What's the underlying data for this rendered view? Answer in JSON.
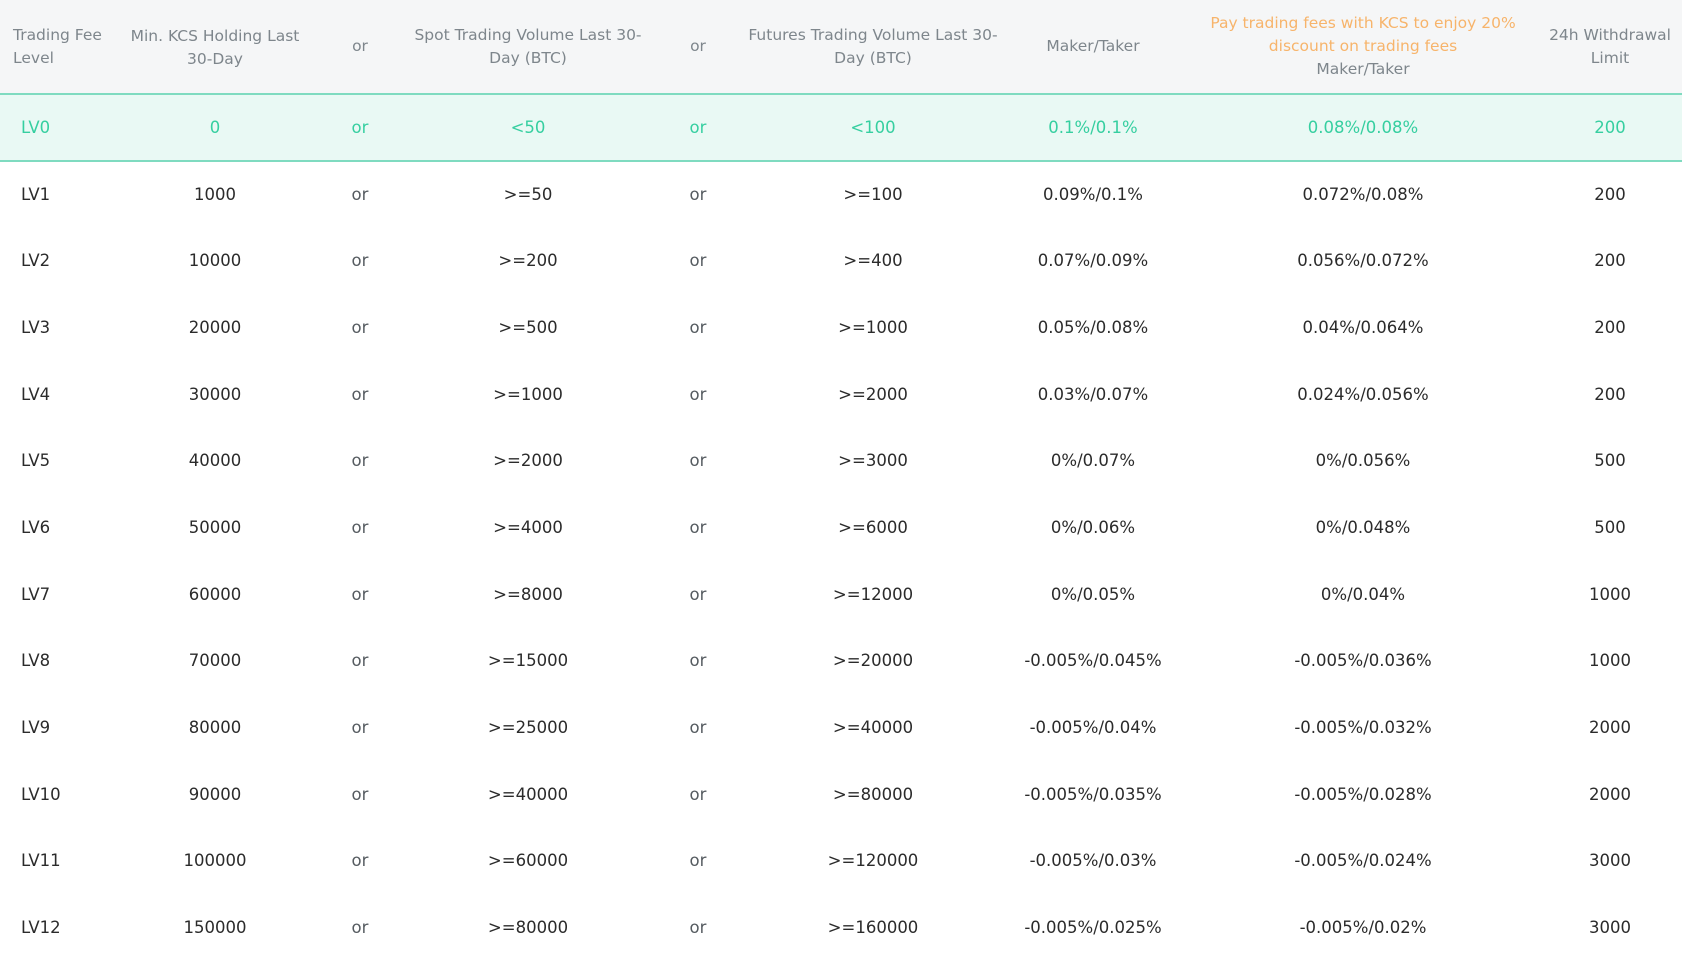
{
  "header": {
    "level": "Trading Fee Level",
    "kcs": "Min. KCS Holding Last 30-Day",
    "or1": "or",
    "spot": "Spot Trading Volume Last 30-Day (BTC)",
    "or2": "or",
    "futures": "Futures Trading Volume Last 30-Day (BTC)",
    "maker_taker": "Maker/Taker",
    "promo": "Pay trading fees with KCS to enjoy 20% discount on trading fees",
    "discount_maker_taker": "Maker/Taker",
    "withdrawal": "24h Withdrawal Limit"
  },
  "rows": [
    {
      "level": "LV0",
      "kcs": "0",
      "or1": "or",
      "spot": "<50",
      "or2": "or",
      "futures": "<100",
      "maker_taker": "0.1%/0.1%",
      "discount": "0.08%/0.08%",
      "withdrawal": "200"
    },
    {
      "level": "LV1",
      "kcs": "1000",
      "or1": "or",
      "spot": ">=50",
      "or2": "or",
      "futures": ">=100",
      "maker_taker": "0.09%/0.1%",
      "discount": "0.072%/0.08%",
      "withdrawal": "200"
    },
    {
      "level": "LV2",
      "kcs": "10000",
      "or1": "or",
      "spot": ">=200",
      "or2": "or",
      "futures": ">=400",
      "maker_taker": "0.07%/0.09%",
      "discount": "0.056%/0.072%",
      "withdrawal": "200"
    },
    {
      "level": "LV3",
      "kcs": "20000",
      "or1": "or",
      "spot": ">=500",
      "or2": "or",
      "futures": ">=1000",
      "maker_taker": "0.05%/0.08%",
      "discount": "0.04%/0.064%",
      "withdrawal": "200"
    },
    {
      "level": "LV4",
      "kcs": "30000",
      "or1": "or",
      "spot": ">=1000",
      "or2": "or",
      "futures": ">=2000",
      "maker_taker": "0.03%/0.07%",
      "discount": "0.024%/0.056%",
      "withdrawal": "200"
    },
    {
      "level": "LV5",
      "kcs": "40000",
      "or1": "or",
      "spot": ">=2000",
      "or2": "or",
      "futures": ">=3000",
      "maker_taker": "0%/0.07%",
      "discount": "0%/0.056%",
      "withdrawal": "500"
    },
    {
      "level": "LV6",
      "kcs": "50000",
      "or1": "or",
      "spot": ">=4000",
      "or2": "or",
      "futures": ">=6000",
      "maker_taker": "0%/0.06%",
      "discount": "0%/0.048%",
      "withdrawal": "500"
    },
    {
      "level": "LV7",
      "kcs": "60000",
      "or1": "or",
      "spot": ">=8000",
      "or2": "or",
      "futures": ">=12000",
      "maker_taker": "0%/0.05%",
      "discount": "0%/0.04%",
      "withdrawal": "1000"
    },
    {
      "level": "LV8",
      "kcs": "70000",
      "or1": "or",
      "spot": ">=15000",
      "or2": "or",
      "futures": ">=20000",
      "maker_taker": "-0.005%/0.045%",
      "discount": "-0.005%/0.036%",
      "withdrawal": "1000"
    },
    {
      "level": "LV9",
      "kcs": "80000",
      "or1": "or",
      "spot": ">=25000",
      "or2": "or",
      "futures": ">=40000",
      "maker_taker": "-0.005%/0.04%",
      "discount": "-0.005%/0.032%",
      "withdrawal": "2000"
    },
    {
      "level": "LV10",
      "kcs": "90000",
      "or1": "or",
      "spot": ">=40000",
      "or2": "or",
      "futures": ">=80000",
      "maker_taker": "-0.005%/0.035%",
      "discount": "-0.005%/0.028%",
      "withdrawal": "2000"
    },
    {
      "level": "LV11",
      "kcs": "100000",
      "or1": "or",
      "spot": ">=60000",
      "or2": "or",
      "futures": ">=120000",
      "maker_taker": "-0.005%/0.03%",
      "discount": "-0.005%/0.024%",
      "withdrawal": "3000"
    },
    {
      "level": "LV12",
      "kcs": "150000",
      "or1": "or",
      "spot": ">=80000",
      "or2": "or",
      "futures": ">=160000",
      "maker_taker": "-0.005%/0.025%",
      "discount": "-0.005%/0.02%",
      "withdrawal": "3000"
    }
  ],
  "colors": {
    "highlight_text": "#36cfa0",
    "highlight_bg": "#e9f9f4",
    "highlight_border": "#7fdbc0",
    "promo_text": "#f7b46b",
    "header_bg": "#f5f6f7",
    "header_text": "#7e868c"
  }
}
